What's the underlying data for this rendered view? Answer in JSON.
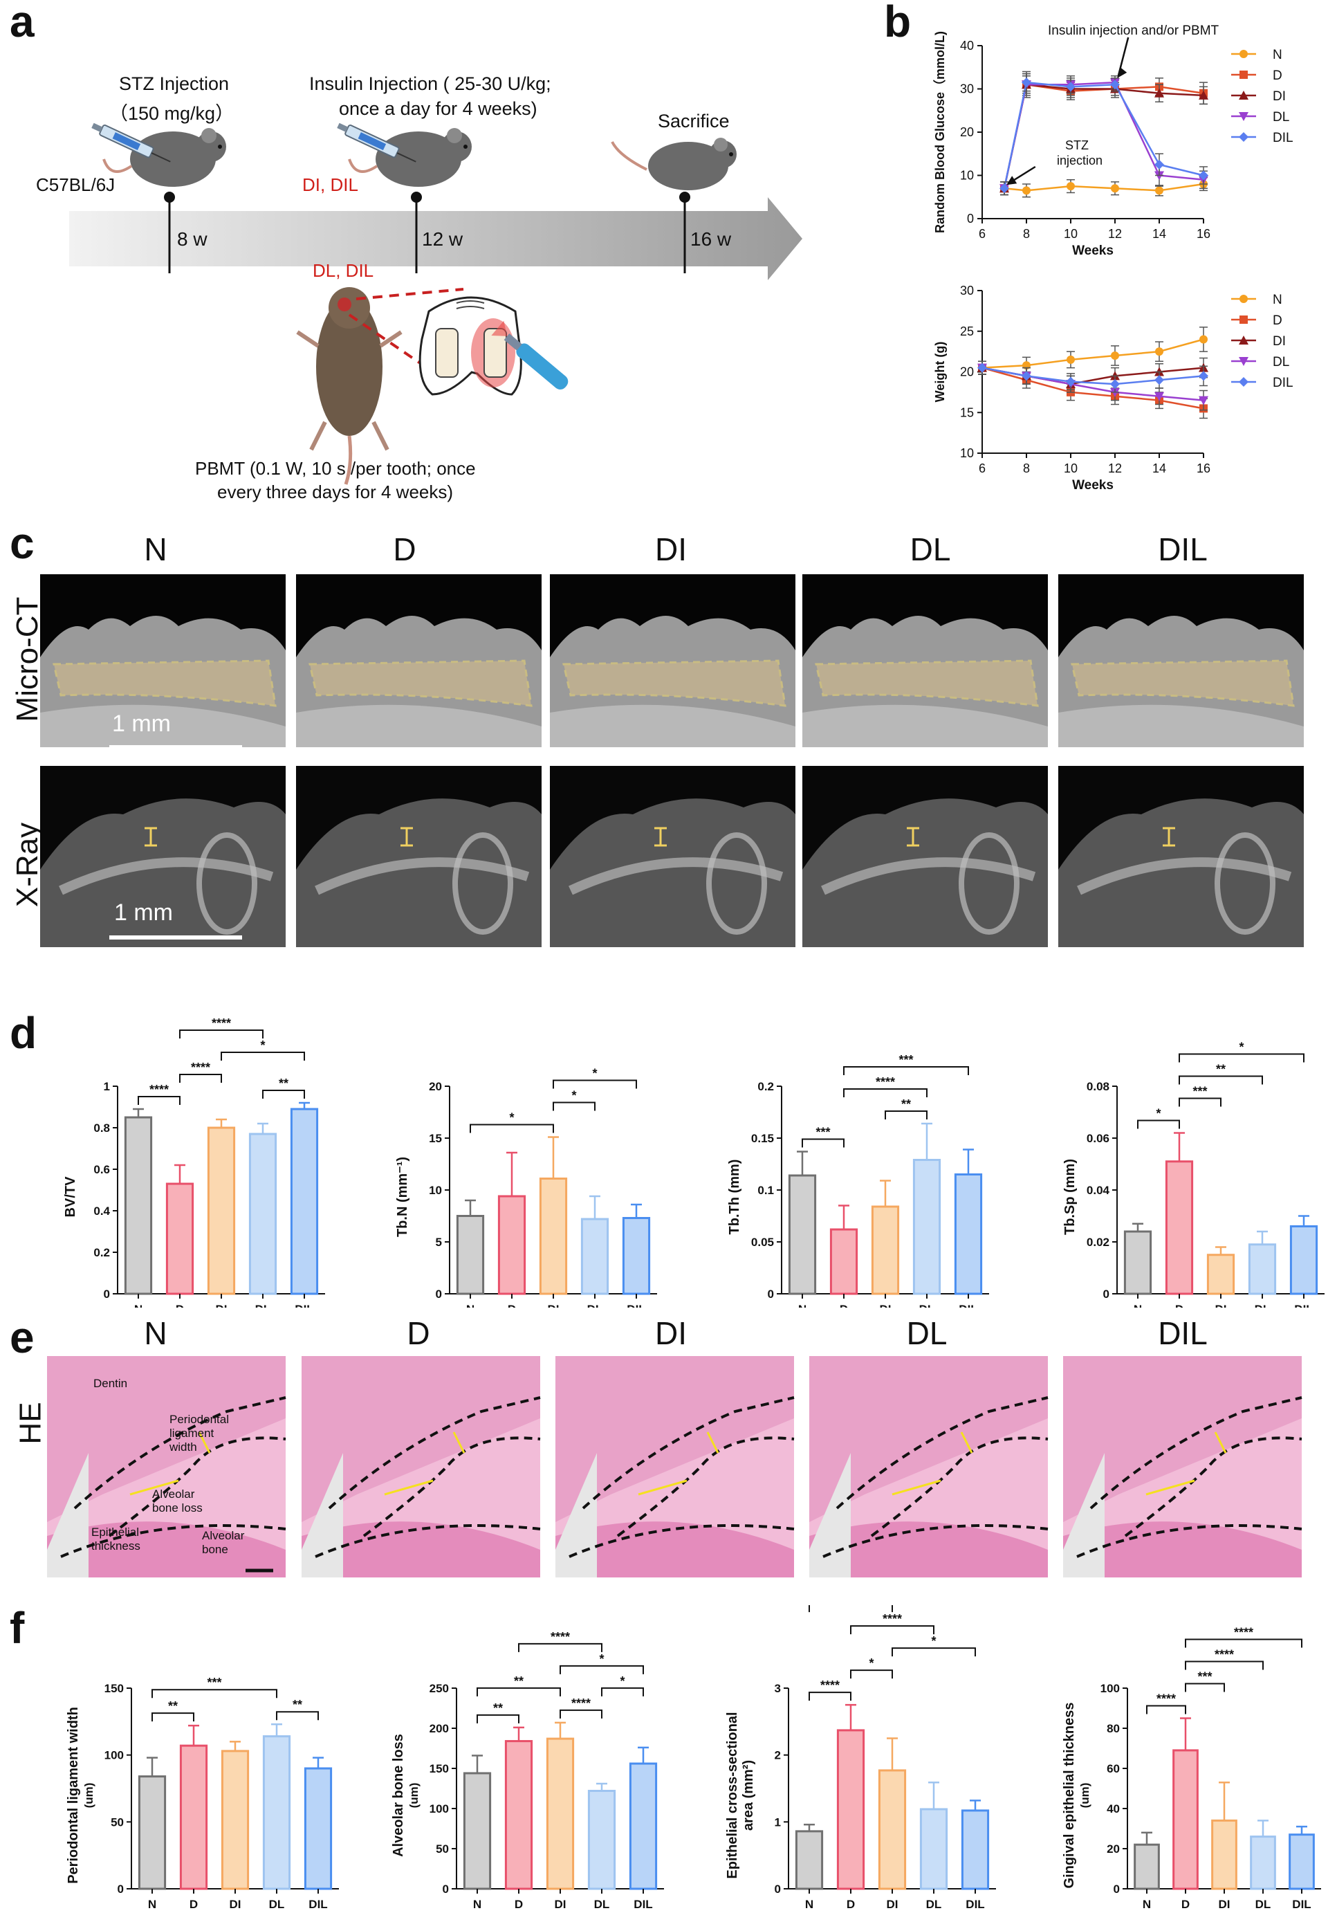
{
  "panels": {
    "a": "a",
    "b": "b",
    "c": "c",
    "d": "d",
    "e": "e",
    "f": "f"
  },
  "panel_a": {
    "mouse_strain": "C57BL/6J",
    "stz_line1": "STZ Injection",
    "stz_line2": "（150 mg/kg）",
    "insulin_line1": "Insulin Injection ( 25-30 U/kg;",
    "insulin_line2": "once a day for 4 weeks)",
    "insulin_groups": "DI, DIL",
    "sacrifice": "Sacrifice",
    "week8": "8 w",
    "week12": "12 w",
    "week16": "16 w",
    "laser_groups": "DL, DIL",
    "pbmt_line1": "PBMT (0.1 W, 10 s /per tooth; once",
    "pbmt_line2": "every three days for 4 weeks)",
    "accent_color": "#d0201a"
  },
  "groups": [
    "N",
    "D",
    "DI",
    "DL",
    "DIL"
  ],
  "group_colors": {
    "N": "#f5a020",
    "D": "#e0502a",
    "DI": "#8b1a1a",
    "DL": "#9a40d0",
    "DIL": "#5a7ef0"
  },
  "chart_b_glucose": {
    "type": "line",
    "ylabel": "Random Blood Glucose（mmol/L)",
    "xlabel": "Weeks",
    "xlim": [
      6,
      16
    ],
    "ylim": [
      0,
      40
    ],
    "xticks": [
      6,
      8,
      10,
      12,
      14,
      16
    ],
    "yticks": [
      0,
      10,
      20,
      30,
      40
    ],
    "annotation_insulin": "Insulin injection and/or PBMT",
    "annotation_stz_1": "STZ",
    "annotation_stz_2": "injection",
    "series": [
      {
        "name": "N",
        "x": [
          7,
          8,
          10,
          12,
          14,
          16
        ],
        "y": [
          7,
          6.5,
          7.5,
          7,
          6.5,
          8
        ],
        "err": [
          1.5,
          1.5,
          1.5,
          1.5,
          1.2,
          1.5
        ]
      },
      {
        "name": "D",
        "x": [
          7,
          8,
          10,
          12,
          14,
          16
        ],
        "y": [
          7,
          31,
          29.5,
          30,
          30.5,
          29
        ],
        "err": [
          1.5,
          3,
          2,
          2,
          2,
          2.5
        ]
      },
      {
        "name": "DI",
        "x": [
          7,
          8,
          10,
          12,
          14,
          16
        ],
        "y": [
          7,
          31,
          30,
          30,
          29,
          28.5
        ],
        "err": [
          1.5,
          2.5,
          2,
          1.5,
          2,
          2
        ]
      },
      {
        "name": "DL",
        "x": [
          7,
          8,
          10,
          12,
          14,
          16
        ],
        "y": [
          7,
          31,
          31,
          31.5,
          10,
          9
        ],
        "err": [
          1.5,
          2,
          2,
          1.5,
          2.5,
          2
        ]
      },
      {
        "name": "DIL",
        "x": [
          7,
          8,
          10,
          12,
          14,
          16
        ],
        "y": [
          7,
          31.5,
          30.5,
          31,
          12.5,
          10
        ],
        "err": [
          1.5,
          2,
          2,
          1.5,
          2.5,
          2
        ]
      }
    ]
  },
  "chart_b_weight": {
    "type": "line",
    "ylabel": "Weight (g)",
    "xlabel": "Weeks",
    "xlim": [
      6,
      16
    ],
    "ylim": [
      10,
      30
    ],
    "xticks": [
      6,
      8,
      10,
      12,
      14,
      16
    ],
    "yticks": [
      10,
      15,
      20,
      25,
      30
    ],
    "series": [
      {
        "name": "N",
        "x": [
          6,
          8,
          10,
          12,
          14,
          16
        ],
        "y": [
          20.5,
          20.8,
          21.5,
          22,
          22.5,
          24
        ],
        "err": [
          0.8,
          1,
          1,
          1.2,
          1.2,
          1.5
        ]
      },
      {
        "name": "D",
        "x": [
          6,
          8,
          10,
          12,
          14,
          16
        ],
        "y": [
          20.5,
          19,
          17.5,
          17,
          16.5,
          15.5
        ],
        "err": [
          0.8,
          1,
          1,
          1,
          1,
          1.2
        ]
      },
      {
        "name": "DI",
        "x": [
          6,
          8,
          10,
          12,
          14,
          16
        ],
        "y": [
          20.5,
          19.5,
          18.5,
          19.5,
          20,
          20.5
        ],
        "err": [
          0.8,
          1,
          1,
          1,
          1,
          1.2
        ]
      },
      {
        "name": "DL",
        "x": [
          6,
          8,
          10,
          12,
          14,
          16
        ],
        "y": [
          20.5,
          19.5,
          18.5,
          17.5,
          17,
          16.5
        ],
        "err": [
          0.8,
          1,
          1,
          1,
          1,
          1.2
        ]
      },
      {
        "name": "DIL",
        "x": [
          6,
          8,
          10,
          12,
          14,
          16
        ],
        "y": [
          20.5,
          19.5,
          18.8,
          18.5,
          19,
          19.5
        ],
        "err": [
          0.8,
          1,
          1,
          1,
          1,
          1.2
        ]
      }
    ]
  },
  "panel_c": {
    "titles": [
      "N",
      "D",
      "DI",
      "DL",
      "DIL"
    ],
    "row1_label": "Micro-CT",
    "row2_label": "X-Ray",
    "scale_label": "1 mm"
  },
  "bar_colors": {
    "fill": [
      "#d0d0d0",
      "#f8b0b8",
      "#fbd8b0",
      "#c8def8",
      "#b8d4f8"
    ],
    "edge": [
      "#707070",
      "#e8506a",
      "#f5a860",
      "#9ec4f0",
      "#4a8ef0"
    ]
  },
  "chart_d": [
    {
      "type": "bar",
      "ylabel": "BV/TV",
      "categories": [
        "N",
        "D",
        "DI",
        "DL",
        "DIL"
      ],
      "values": [
        0.85,
        0.53,
        0.8,
        0.77,
        0.89
      ],
      "err": [
        0.04,
        0.09,
        0.04,
        0.05,
        0.03
      ],
      "ylim": [
        0,
        1.0
      ],
      "yticks": [
        0.0,
        0.2,
        0.4,
        0.6,
        0.8,
        1.0
      ],
      "sig": [
        {
          "a": 0,
          "b": 1,
          "label": "****"
        },
        {
          "a": 1,
          "b": 2,
          "label": "****"
        },
        {
          "a": 3,
          "b": 4,
          "label": "**"
        },
        {
          "a": 2,
          "b": 4,
          "label": "*"
        },
        {
          "a": 1,
          "b": 3,
          "label": "****"
        },
        {
          "a": 1,
          "b": 4,
          "label": "****"
        }
      ]
    },
    {
      "type": "bar",
      "ylabel": "Tb.N (mm⁻¹)",
      "categories": [
        "N",
        "D",
        "DI",
        "DL",
        "DIL"
      ],
      "values": [
        7.5,
        9.4,
        11.1,
        7.2,
        7.3
      ],
      "err": [
        1.5,
        4.2,
        4.0,
        2.2,
        1.3
      ],
      "ylim": [
        0,
        20
      ],
      "yticks": [
        0,
        5,
        10,
        15,
        20
      ],
      "sig": [
        {
          "a": 0,
          "b": 2,
          "label": "*"
        },
        {
          "a": 2,
          "b": 3,
          "label": "*"
        },
        {
          "a": 2,
          "b": 4,
          "label": "*"
        }
      ]
    },
    {
      "type": "bar",
      "ylabel": "Tb.Th (mm)",
      "categories": [
        "N",
        "D",
        "DI",
        "DL",
        "DIL"
      ],
      "values": [
        0.114,
        0.062,
        0.084,
        0.129,
        0.115
      ],
      "err": [
        0.023,
        0.023,
        0.025,
        0.035,
        0.024
      ],
      "ylim": [
        0,
        0.2
      ],
      "yticks": [
        0.0,
        0.05,
        0.1,
        0.15,
        0.2
      ],
      "sig": [
        {
          "a": 0,
          "b": 1,
          "label": "***"
        },
        {
          "a": 2,
          "b": 3,
          "label": "**"
        },
        {
          "a": 1,
          "b": 3,
          "label": "****"
        },
        {
          "a": 1,
          "b": 4,
          "label": "***"
        }
      ]
    },
    {
      "type": "bar",
      "ylabel": "Tb.Sp (mm)",
      "categories": [
        "N",
        "D",
        "DI",
        "DL",
        "DIL"
      ],
      "values": [
        0.024,
        0.051,
        0.015,
        0.019,
        0.026
      ],
      "err": [
        0.003,
        0.011,
        0.003,
        0.005,
        0.004
      ],
      "ylim": [
        0,
        0.08
      ],
      "yticks": [
        0.0,
        0.02,
        0.04,
        0.06,
        0.08
      ],
      "sig": [
        {
          "a": 0,
          "b": 1,
          "label": "*"
        },
        {
          "a": 1,
          "b": 2,
          "label": "***"
        },
        {
          "a": 1,
          "b": 3,
          "label": "**"
        },
        {
          "a": 1,
          "b": 4,
          "label": "*"
        }
      ]
    }
  ],
  "panel_e": {
    "titles": [
      "N",
      "D",
      "DI",
      "DL",
      "DIL"
    ],
    "row_label": "HE",
    "ann_dentin": "Dentin",
    "ann_pdl_1": "Periodontal",
    "ann_pdl_2": "ligament",
    "ann_pdl_3": "width",
    "ann_abl_1": "Alveolar",
    "ann_abl_2": "bone loss",
    "ann_epi_1": "Epithelial",
    "ann_epi_2": "thickness",
    "ann_bone_1": "Alveolar",
    "ann_bone_2": "bone"
  },
  "chart_f": [
    {
      "type": "bar",
      "ylabel": "Periodontal ligament width",
      "unit": "(um)",
      "categories": [
        "N",
        "D",
        "DI",
        "DL",
        "DIL"
      ],
      "values": [
        84,
        107,
        103,
        114,
        90
      ],
      "err": [
        14,
        15,
        7,
        9,
        8
      ],
      "ylim": [
        0,
        150
      ],
      "yticks": [
        0,
        50,
        100,
        150
      ],
      "sig": [
        {
          "a": 0,
          "b": 1,
          "label": "**"
        },
        {
          "a": 3,
          "b": 4,
          "label": "**"
        },
        {
          "a": 0,
          "b": 3,
          "label": "***"
        }
      ]
    },
    {
      "type": "bar",
      "ylabel": "Alveolar bone loss",
      "unit": "(um)",
      "categories": [
        "N",
        "D",
        "DI",
        "DL",
        "DIL"
      ],
      "values": [
        144,
        184,
        187,
        122,
        156
      ],
      "err": [
        22,
        17,
        20,
        9,
        20
      ],
      "ylim": [
        0,
        250
      ],
      "yticks": [
        0,
        50,
        100,
        150,
        200,
        250
      ],
      "sig": [
        {
          "a": 0,
          "b": 1,
          "label": "**"
        },
        {
          "a": 2,
          "b": 3,
          "label": "****"
        },
        {
          "a": 3,
          "b": 4,
          "label": "*"
        },
        {
          "a": 0,
          "b": 2,
          "label": "**"
        },
        {
          "a": 2,
          "b": 4,
          "label": "*"
        },
        {
          "a": 1,
          "b": 3,
          "label": "****"
        }
      ]
    },
    {
      "type": "bar",
      "ylabel": "Epithelial cross-sectional",
      "ylabel2": "area (mm²)",
      "categories": [
        "N",
        "D",
        "DI",
        "DL",
        "DIL"
      ],
      "values": [
        0.86,
        2.37,
        1.77,
        1.19,
        1.17
      ],
      "err": [
        0.1,
        0.38,
        0.48,
        0.4,
        0.15
      ],
      "ylim": [
        0,
        3
      ],
      "yticks": [
        0,
        1,
        2,
        3
      ],
      "sig": [
        {
          "a": 0,
          "b": 1,
          "label": "****"
        },
        {
          "a": 1,
          "b": 2,
          "label": "*"
        },
        {
          "a": 2,
          "b": 4,
          "label": "*"
        },
        {
          "a": 1,
          "b": 3,
          "label": "****"
        },
        {
          "a": 0,
          "b": 2,
          "label": "***"
        },
        {
          "a": 1,
          "b": 4,
          "label": "****"
        }
      ]
    },
    {
      "type": "bar",
      "ylabel": "Gingival epithelial thickness",
      "unit": "(um)",
      "categories": [
        "N",
        "D",
        "DI",
        "DL",
        "DIL"
      ],
      "values": [
        22,
        69,
        34,
        26,
        27
      ],
      "err": [
        6,
        16,
        19,
        8,
        4
      ],
      "ylim": [
        0,
        100
      ],
      "yticks": [
        0,
        20,
        40,
        60,
        80,
        100
      ],
      "sig": [
        {
          "a": 0,
          "b": 1,
          "label": "****"
        },
        {
          "a": 1,
          "b": 2,
          "label": "***"
        },
        {
          "a": 1,
          "b": 3,
          "label": "****"
        },
        {
          "a": 1,
          "b": 4,
          "label": "****"
        }
      ]
    }
  ]
}
